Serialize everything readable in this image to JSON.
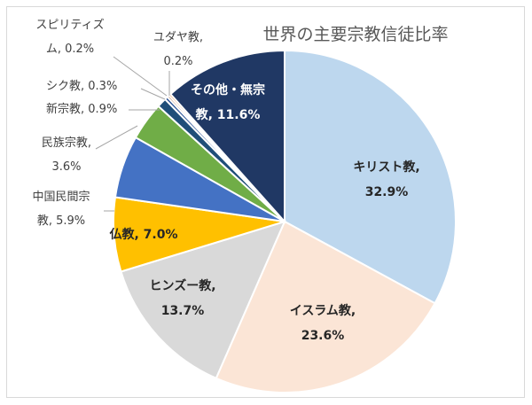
{
  "chart_data": {
    "type": "pie",
    "title": "世界の主要宗教信徒比率",
    "slices": [
      {
        "name": "キリスト教",
        "value": 32.9,
        "pct": "32.9%",
        "color": "#BDD7EE"
      },
      {
        "name": "イスラム教",
        "value": 23.6,
        "pct": "23.6%",
        "color": "#FBE5D6"
      },
      {
        "name": "ヒンズー教",
        "value": 13.7,
        "pct": "13.7%",
        "color": "#D9D9D9"
      },
      {
        "name": "仏教",
        "value": 7.0,
        "pct": "7.0%",
        "color": "#FFC000"
      },
      {
        "name": "中国民間宗教",
        "value": 5.9,
        "pct": "5.9%",
        "color": "#4472C4"
      },
      {
        "name": "民族宗教",
        "value": 3.6,
        "pct": "3.6%",
        "color": "#70AD47"
      },
      {
        "name": "新宗教",
        "value": 0.9,
        "pct": "0.9%",
        "color": "#1F4E79"
      },
      {
        "name": "シク教",
        "value": 0.3,
        "pct": "0.3%",
        "color": "#2F5597"
      },
      {
        "name": "スピリティズム",
        "value": 0.2,
        "pct": "0.2%",
        "color": "#9E480E"
      },
      {
        "name": "ユダヤ教",
        "value": 0.2,
        "pct": "0.2%",
        "color": "#ED7D31"
      },
      {
        "name": "その他・無宗教",
        "value": 11.6,
        "pct": "11.6%",
        "color": "#203864"
      }
    ],
    "labels": [
      {
        "lines": [
          "キリスト教,",
          "32.9%"
        ]
      },
      {
        "lines": [
          "イスラム教,",
          "23.6%"
        ]
      },
      {
        "lines": [
          "ヒンズー教,",
          "13.7%"
        ]
      },
      {
        "lines": [
          "仏教, 7.0%"
        ]
      },
      {
        "lines": [
          "中国民間宗",
          "教, 5.9%"
        ]
      },
      {
        "lines": [
          "民族宗教,",
          "3.6%"
        ]
      },
      {
        "lines": [
          "新宗教, 0.9%"
        ]
      },
      {
        "lines": [
          "シク教, 0.3%"
        ]
      },
      {
        "lines": [
          "スピリティズ",
          "ム, 0.2%"
        ]
      },
      {
        "lines": [
          "ユダヤ教,",
          "0.2%"
        ]
      },
      {
        "lines": [
          "その他・無宗",
          "教, 11.6%"
        ]
      }
    ],
    "legend": "none"
  }
}
